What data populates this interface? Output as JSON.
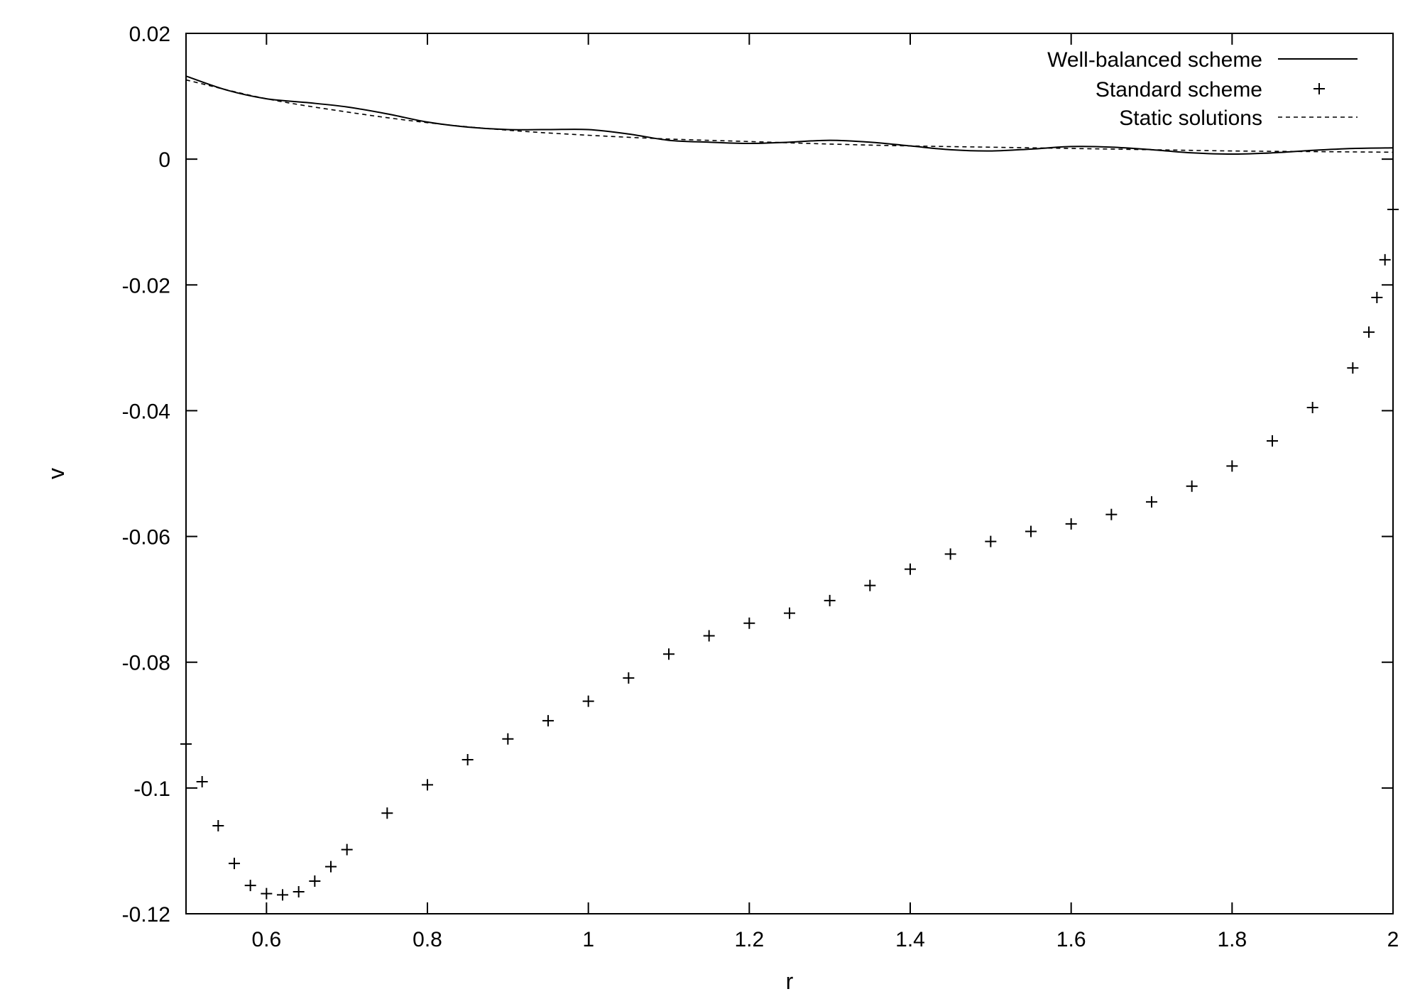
{
  "chart_data": {
    "type": "line",
    "xlabel": "r",
    "ylabel": "v",
    "xlim": [
      0.5,
      2.0
    ],
    "ylim": [
      -0.12,
      0.02
    ],
    "x_ticks": [
      0.6,
      0.8,
      1,
      1.2,
      1.4,
      1.6,
      1.8,
      2
    ],
    "x_tick_labels": [
      "0.6",
      "0.8",
      "1",
      "1.2",
      "1.4",
      "1.6",
      "1.8",
      "2"
    ],
    "y_ticks": [
      0.02,
      0,
      -0.02,
      -0.04,
      -0.06,
      -0.08,
      -0.1,
      -0.12
    ],
    "y_tick_labels": [
      "0.02",
      "0",
      "-0.02",
      "-0.04",
      "-0.06",
      "-0.08",
      "-0.1",
      "-0.12"
    ],
    "grid": false,
    "legend_position": "top-right",
    "series": [
      {
        "name": "Well-balanced scheme",
        "style": "solid",
        "x": [
          0.5,
          0.55,
          0.6,
          0.65,
          0.7,
          0.75,
          0.8,
          0.85,
          0.9,
          0.95,
          1.0,
          1.05,
          1.1,
          1.15,
          1.2,
          1.25,
          1.3,
          1.35,
          1.4,
          1.45,
          1.5,
          1.55,
          1.6,
          1.65,
          1.7,
          1.75,
          1.8,
          1.85,
          1.9,
          1.95,
          2.0
        ],
        "y": [
          0.0132,
          0.011,
          0.0096,
          0.009,
          0.0083,
          0.0072,
          0.0059,
          0.0051,
          0.0047,
          0.0047,
          0.0047,
          0.004,
          0.003,
          0.0027,
          0.0025,
          0.0027,
          0.003,
          0.0027,
          0.0021,
          0.0015,
          0.0013,
          0.0016,
          0.002,
          0.0019,
          0.0015,
          0.001,
          0.0008,
          0.001,
          0.0014,
          0.0017,
          0.0018
        ]
      },
      {
        "name": "Standard scheme",
        "style": "plus-markers",
        "x": [
          0.5,
          0.52,
          0.54,
          0.56,
          0.58,
          0.6,
          0.62,
          0.64,
          0.66,
          0.68,
          0.7,
          0.75,
          0.8,
          0.85,
          0.9,
          0.95,
          1.0,
          1.05,
          1.1,
          1.15,
          1.2,
          1.25,
          1.3,
          1.35,
          1.4,
          1.45,
          1.5,
          1.55,
          1.6,
          1.65,
          1.7,
          1.75,
          1.8,
          1.85,
          1.9,
          1.95,
          1.97,
          1.98,
          1.99,
          2.0
        ],
        "y": [
          -0.093,
          -0.099,
          -0.106,
          -0.112,
          -0.1155,
          -0.1168,
          -0.117,
          -0.1165,
          -0.1148,
          -0.1125,
          -0.1098,
          -0.104,
          -0.0995,
          -0.0955,
          -0.0922,
          -0.0893,
          -0.0862,
          -0.0825,
          -0.0787,
          -0.0758,
          -0.0738,
          -0.0722,
          -0.0702,
          -0.0678,
          -0.0652,
          -0.0628,
          -0.0608,
          -0.0592,
          -0.058,
          -0.0565,
          -0.0545,
          -0.052,
          -0.0488,
          -0.0448,
          -0.0395,
          -0.0332,
          -0.0275,
          -0.022,
          -0.016,
          -0.008
        ]
      },
      {
        "name": "Static solutions",
        "style": "dashed",
        "x": [
          0.5,
          0.6,
          0.7,
          0.8,
          0.9,
          1.0,
          1.1,
          1.2,
          1.3,
          1.4,
          1.5,
          1.6,
          1.7,
          1.8,
          1.9,
          2.0
        ],
        "y": [
          0.0126,
          0.0096,
          0.0075,
          0.0058,
          0.0046,
          0.0038,
          0.0032,
          0.0028,
          0.0024,
          0.0021,
          0.0019,
          0.0017,
          0.0015,
          0.0013,
          0.0012,
          0.0011
        ]
      }
    ]
  }
}
